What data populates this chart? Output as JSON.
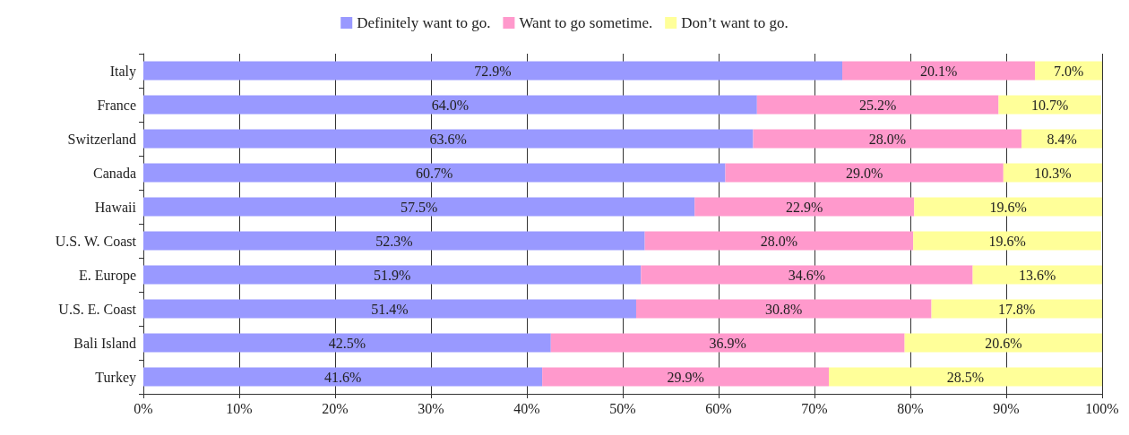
{
  "chart_data": {
    "type": "bar",
    "orientation": "horizontal",
    "stacked": true,
    "categories": [
      "Italy",
      "France",
      "Switzerland",
      "Canada",
      "Hawaii",
      "U.S. W. Coast",
      "E. Europe",
      "U.S. E. Coast",
      "Bali Island",
      "Turkey"
    ],
    "series": [
      {
        "name": "Definitely want to go.",
        "color": "#9999ff",
        "values": [
          72.9,
          64.0,
          63.6,
          60.7,
          57.5,
          52.3,
          51.9,
          51.4,
          42.5,
          41.6
        ],
        "value_labels": [
          "72.9%",
          "64.0%",
          "63.6%",
          "60.7%",
          "57.5%",
          "52.3%",
          "51.9%",
          "51.4%",
          "42.5%",
          "41.6%"
        ]
      },
      {
        "name": "Want to go sometime.",
        "color": "#ff99cc",
        "values": [
          20.1,
          25.2,
          28.0,
          29.0,
          22.9,
          28.0,
          34.6,
          30.8,
          36.9,
          29.9
        ],
        "value_labels": [
          "20.1%",
          "25.2%",
          "28.0%",
          "29.0%",
          "22.9%",
          "28.0%",
          "34.6%",
          "30.8%",
          "36.9%",
          "29.9%"
        ]
      },
      {
        "name": "Don’t want to go.",
        "color": "#ffff99",
        "values": [
          7.0,
          10.7,
          8.4,
          10.3,
          19.6,
          19.6,
          13.6,
          17.8,
          20.6,
          28.5
        ],
        "value_labels": [
          "7.0%",
          "10.7%",
          "8.4%",
          "10.3%",
          "19.6%",
          "19.6%",
          "13.6%",
          "17.8%",
          "20.6%",
          "28.5%"
        ]
      }
    ],
    "xlim": [
      0,
      100
    ],
    "xticks": [
      {
        "value": 0,
        "label": "0%"
      },
      {
        "value": 10,
        "label": "10%"
      },
      {
        "value": 20,
        "label": "20%"
      },
      {
        "value": 30,
        "label": "30%"
      },
      {
        "value": 40,
        "label": "40%"
      },
      {
        "value": 50,
        "label": "50%"
      },
      {
        "value": 60,
        "label": "60%"
      },
      {
        "value": 70,
        "label": "70%"
      },
      {
        "value": 80,
        "label": "80%"
      },
      {
        "value": 90,
        "label": "90%"
      },
      {
        "value": 100,
        "label": "100%"
      }
    ],
    "grid": "x",
    "legend": "top"
  }
}
